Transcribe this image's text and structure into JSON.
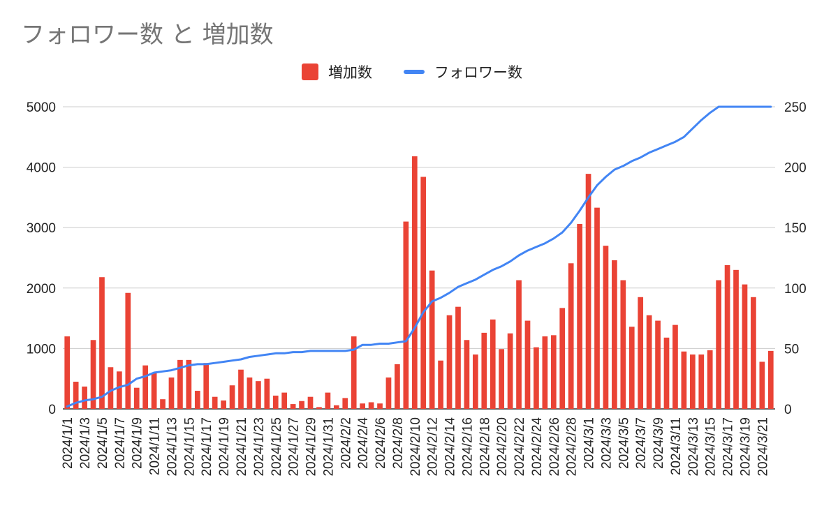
{
  "chart_data": {
    "type": "bar",
    "title": "フォロワー数 と 増加数",
    "legend_position": "top",
    "grid": true,
    "x": [
      "2024/1/1",
      "2024/1/2",
      "2024/1/3",
      "2024/1/4",
      "2024/1/5",
      "2024/1/6",
      "2024/1/7",
      "2024/1/8",
      "2024/1/9",
      "2024/1/10",
      "2024/1/11",
      "2024/1/12",
      "2024/1/13",
      "2024/1/14",
      "2024/1/15",
      "2024/1/16",
      "2024/1/17",
      "2024/1/18",
      "2024/1/19",
      "2024/1/20",
      "2024/1/21",
      "2024/1/22",
      "2024/1/23",
      "2024/1/24",
      "2024/1/25",
      "2024/1/26",
      "2024/1/27",
      "2024/1/28",
      "2024/1/29",
      "2024/1/30",
      "2024/1/31",
      "2024/2/1",
      "2024/2/2",
      "2024/2/3",
      "2024/2/4",
      "2024/2/5",
      "2024/2/6",
      "2024/2/7",
      "2024/2/8",
      "2024/2/9",
      "2024/2/10",
      "2024/2/11",
      "2024/2/12",
      "2024/2/13",
      "2024/2/14",
      "2024/2/15",
      "2024/2/16",
      "2024/2/17",
      "2024/2/18",
      "2024/2/19",
      "2024/2/20",
      "2024/2/21",
      "2024/2/22",
      "2024/2/23",
      "2024/2/24",
      "2024/2/25",
      "2024/2/26",
      "2024/2/27",
      "2024/2/28",
      "2024/2/29",
      "2024/3/1",
      "2024/3/2",
      "2024/3/3",
      "2024/3/4",
      "2024/3/5",
      "2024/3/6",
      "2024/3/7",
      "2024/3/8",
      "2024/3/9",
      "2024/3/10",
      "2024/3/11",
      "2024/3/12",
      "2024/3/13",
      "2024/3/14",
      "2024/3/15",
      "2024/3/16",
      "2024/3/17",
      "2024/3/18",
      "2024/3/19",
      "2024/3/20",
      "2024/3/21",
      "2024/3/22"
    ],
    "x_tick_labels": [
      "2024/1/1",
      "2024/1/3",
      "2024/1/5",
      "2024/1/7",
      "2024/1/9",
      "2024/1/11",
      "2024/1/13",
      "2024/1/15",
      "2024/1/17",
      "2024/1/19",
      "2024/1/21",
      "2024/1/23",
      "2024/1/25",
      "2024/1/27",
      "2024/1/29",
      "2024/1/31",
      "2024/2/2",
      "2024/2/4",
      "2024/2/6",
      "2024/2/8",
      "2024/2/10",
      "2024/2/12",
      "2024/2/14",
      "2024/2/16",
      "2024/2/18",
      "2024/2/20",
      "2024/2/22",
      "2024/2/24",
      "2024/2/26",
      "2024/2/28",
      "2024/3/1",
      "2024/3/3",
      "2024/3/5",
      "2024/3/7",
      "2024/3/9",
      "2024/3/11",
      "2024/3/13",
      "2024/3/15",
      "2024/3/17",
      "2024/3/19",
      "2024/3/21"
    ],
    "y_left": {
      "ylim": [
        0,
        5000
      ],
      "ticks": [
        0,
        1000,
        2000,
        3000,
        4000,
        5000
      ]
    },
    "y_right": {
      "ylim": [
        0,
        250
      ],
      "ticks": [
        0,
        50,
        100,
        150,
        200,
        250
      ]
    },
    "series": [
      {
        "name": "増加数",
        "type": "bar",
        "axis": "left",
        "color": "#ea4335",
        "values": [
          1200,
          450,
          370,
          1140,
          2180,
          690,
          620,
          1920,
          350,
          720,
          600,
          160,
          520,
          810,
          810,
          300,
          760,
          200,
          140,
          390,
          650,
          520,
          460,
          500,
          220,
          270,
          80,
          130,
          200,
          30,
          270,
          60,
          180,
          1200,
          90,
          110,
          90,
          520,
          740,
          3100,
          4180,
          3840,
          2290,
          800,
          1550,
          1690,
          1140,
          900,
          1260,
          1480,
          990,
          1250,
          2130,
          1460,
          1020,
          1200,
          1220,
          1670,
          2410,
          3060,
          3890,
          3330,
          2700,
          2460,
          2130,
          1360,
          1850,
          1550,
          1460,
          1180,
          1390,
          950,
          900,
          900,
          970,
          2130,
          2380,
          2300,
          2060,
          1850,
          780,
          960
        ]
      },
      {
        "name": "フォロワー数",
        "type": "line",
        "axis": "right",
        "color": "#4285f4",
        "values": [
          2,
          5,
          7,
          8,
          10,
          15,
          18,
          20,
          25,
          27,
          30,
          31,
          32,
          34,
          36,
          37,
          37,
          38,
          39,
          40,
          41,
          43,
          44,
          45,
          46,
          46,
          47,
          47,
          48,
          48,
          48,
          48,
          48,
          49,
          53,
          53,
          54,
          54,
          55,
          56,
          67,
          80,
          89,
          92,
          96,
          101,
          104,
          107,
          111,
          115,
          118,
          122,
          127,
          131,
          134,
          137,
          141,
          146,
          154,
          164,
          175,
          185,
          192,
          198,
          201,
          205,
          208,
          212,
          215,
          218,
          221,
          225,
          232,
          239,
          245,
          250,
          250,
          250,
          250,
          250,
          250,
          250
        ]
      }
    ]
  }
}
